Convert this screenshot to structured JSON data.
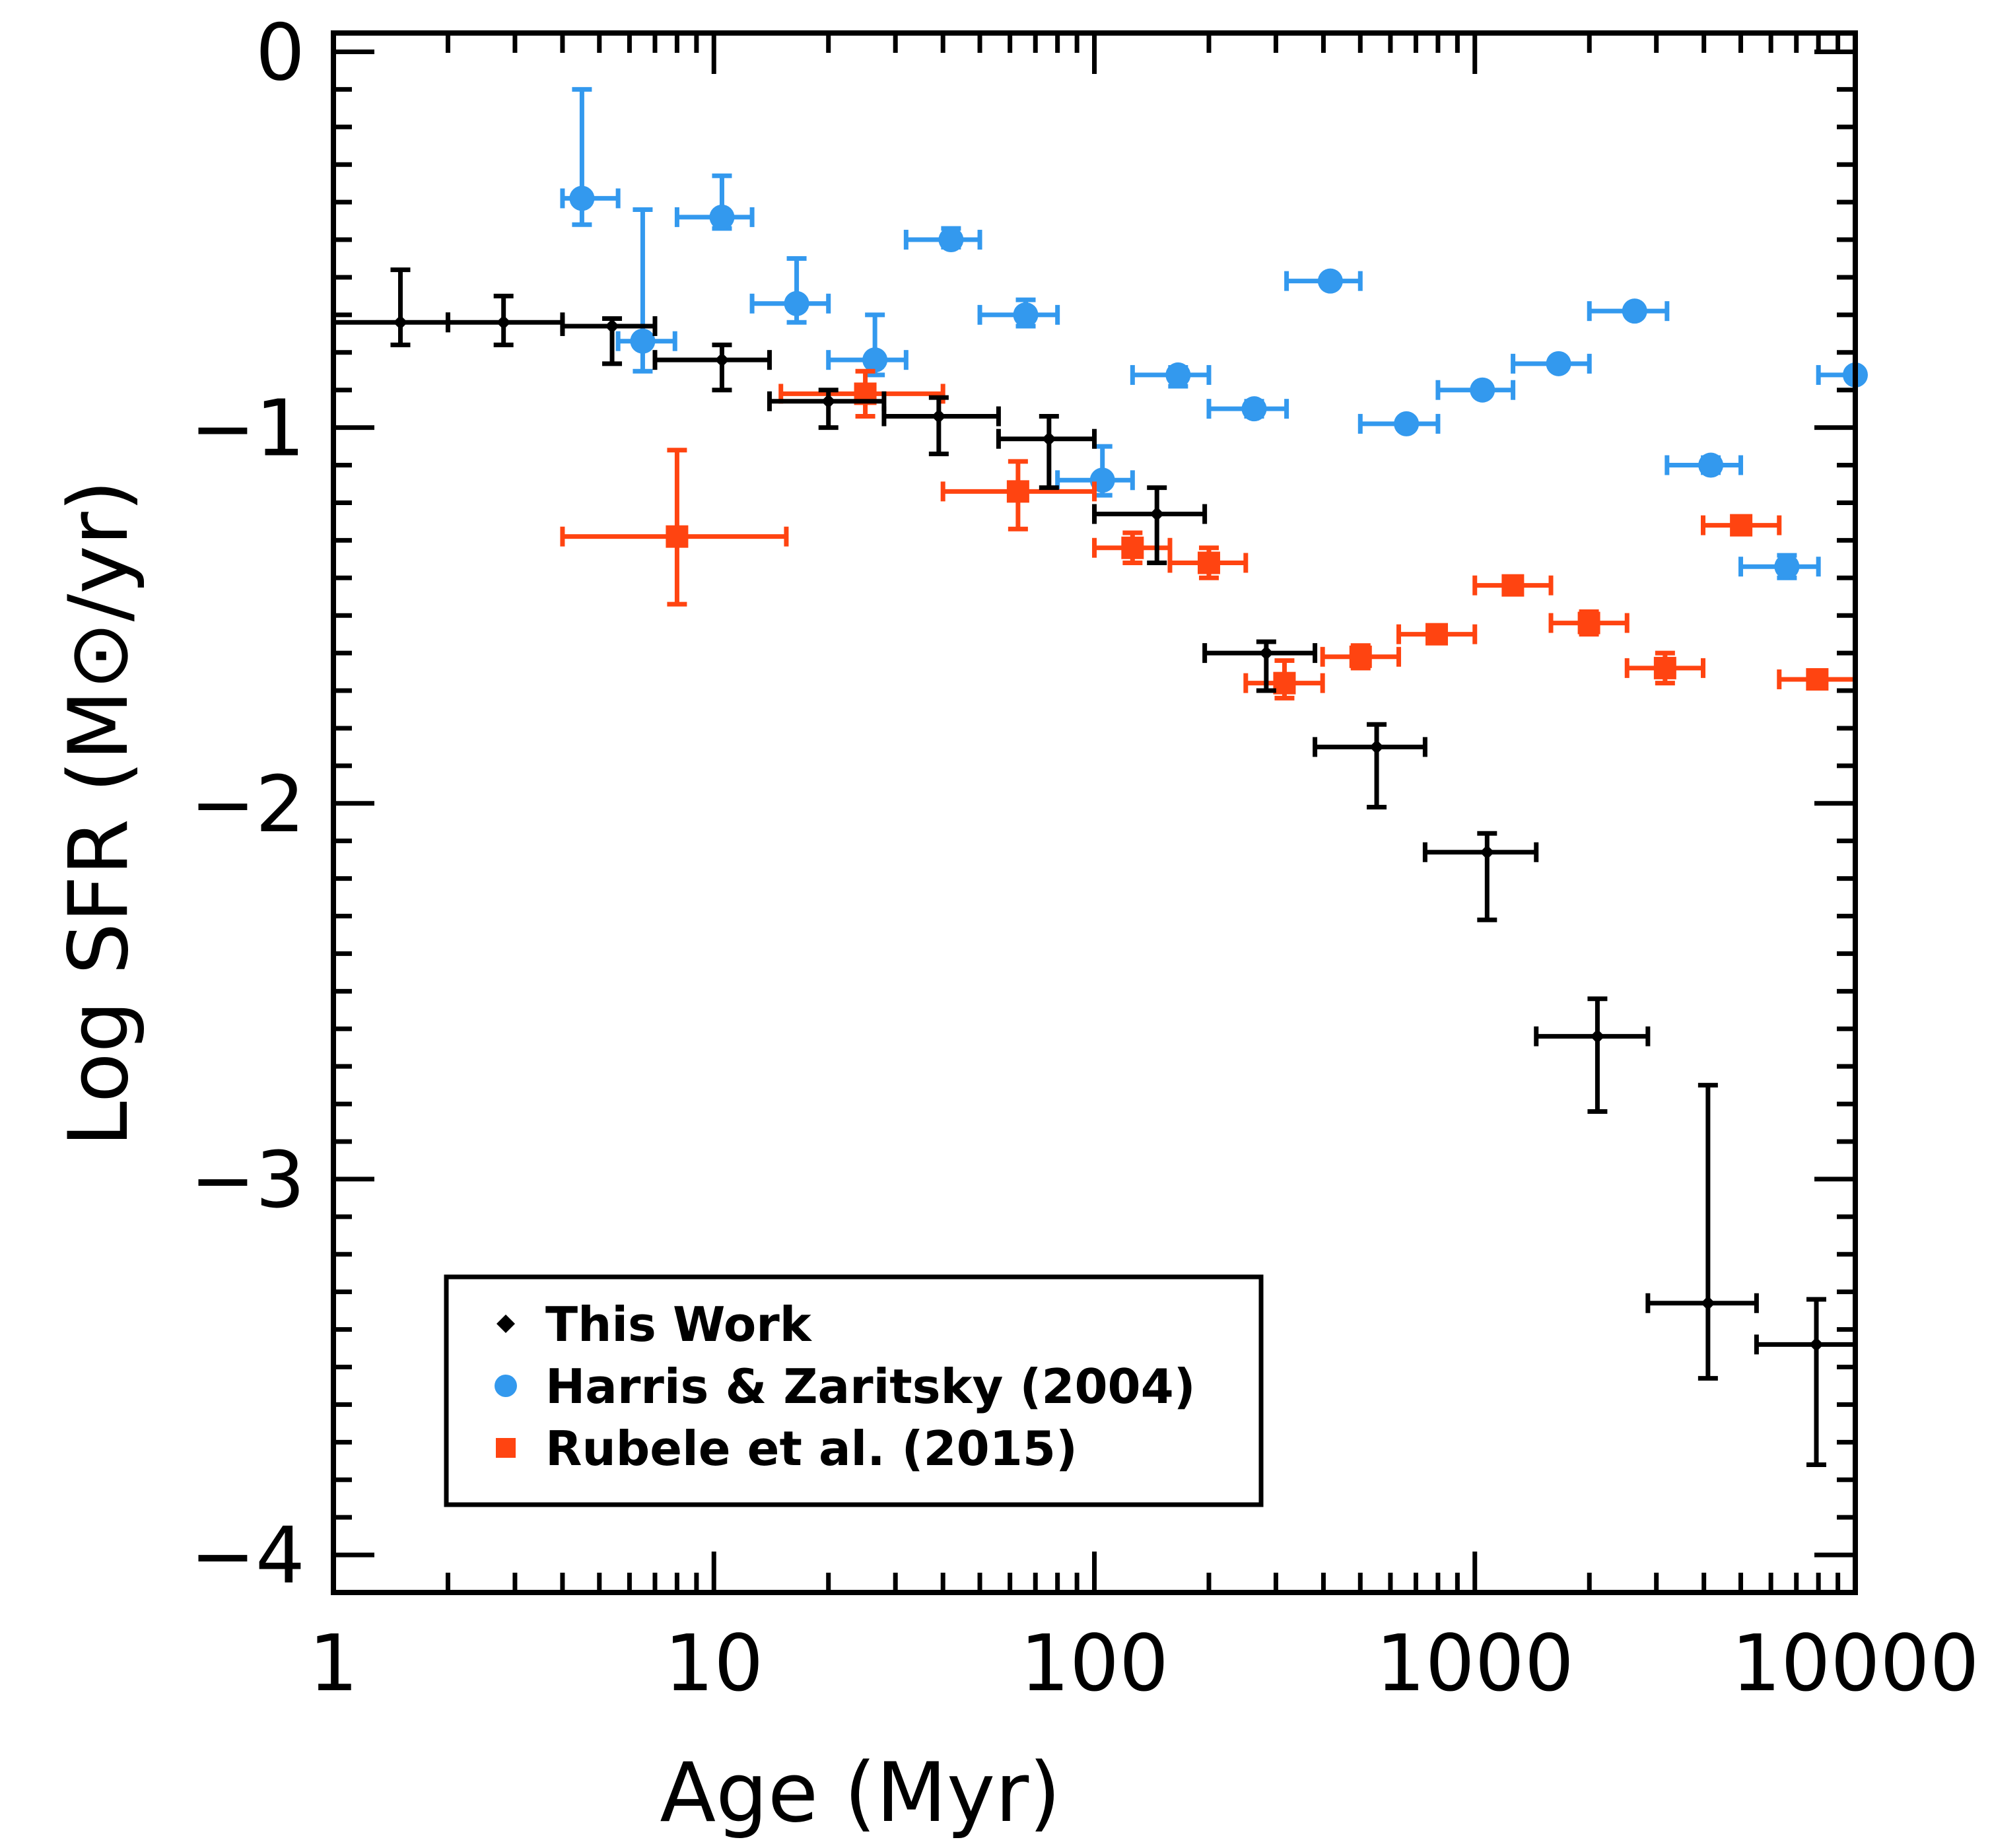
{
  "chart_data": {
    "type": "scatter",
    "title": "",
    "xlabel": "Age (Myr)",
    "ylabel": "Log SFR (M⊙/yr)",
    "xscale": "log",
    "xlim": [
      1,
      10000
    ],
    "ylim": [
      -4.1,
      0.05
    ],
    "x_ticks": [
      1,
      10,
      100,
      1000,
      10000
    ],
    "x_tick_labels": [
      "1",
      "10",
      "100",
      "1000",
      "10000"
    ],
    "y_ticks": [
      0,
      -1,
      -2,
      -3,
      -4
    ],
    "y_tick_labels": [
      "0",
      "−1",
      "−2",
      "−3",
      "−4"
    ],
    "legend_position": "bottom-left",
    "series": [
      {
        "name": "This Work",
        "color": "#000000",
        "marker": "diamond",
        "points": [
          {
            "x": 1.5,
            "xlo": 1.0,
            "xhi": 2.0,
            "y": -0.72,
            "ylo": -0.78,
            "yhi": -0.58
          },
          {
            "x": 2.8,
            "xlo": 2.0,
            "xhi": 4.0,
            "y": -0.72,
            "ylo": -0.78,
            "yhi": -0.65
          },
          {
            "x": 5.4,
            "xlo": 4.0,
            "xhi": 7.0,
            "y": -0.73,
            "ylo": -0.83,
            "yhi": -0.71
          },
          {
            "x": 10.5,
            "xlo": 7.0,
            "xhi": 14.0,
            "y": -0.82,
            "ylo": -0.9,
            "yhi": -0.78
          },
          {
            "x": 20.0,
            "xlo": 14.0,
            "xhi": 28.0,
            "y": -0.93,
            "ylo": -1.0,
            "yhi": -0.9
          },
          {
            "x": 39.0,
            "xlo": 28.0,
            "xhi": 56.0,
            "y": -0.97,
            "ylo": -1.07,
            "yhi": -0.92
          },
          {
            "x": 76.0,
            "xlo": 56.0,
            "xhi": 100.0,
            "y": -1.03,
            "ylo": -1.16,
            "yhi": -0.97
          },
          {
            "x": 146.0,
            "xlo": 100.0,
            "xhi": 195.0,
            "y": -1.23,
            "ylo": -1.36,
            "yhi": -1.16
          },
          {
            "x": 283.0,
            "xlo": 195.0,
            "xhi": 380.0,
            "y": -1.6,
            "ylo": -1.7,
            "yhi": -1.57
          },
          {
            "x": 552.0,
            "xlo": 380.0,
            "xhi": 740.0,
            "y": -1.85,
            "ylo": -2.01,
            "yhi": -1.79
          },
          {
            "x": 1077.0,
            "xlo": 740.0,
            "xhi": 1450.0,
            "y": -2.13,
            "ylo": -2.31,
            "yhi": -2.08
          },
          {
            "x": 2100.0,
            "xlo": 1450.0,
            "xhi": 2850.0,
            "y": -2.62,
            "ylo": -2.82,
            "yhi": -2.52
          },
          {
            "x": 4100.0,
            "xlo": 2850.0,
            "xhi": 5500.0,
            "y": -3.33,
            "ylo": -3.53,
            "yhi": -2.75
          },
          {
            "x": 7900.0,
            "xlo": 5500.0,
            "xhi": 10000.0,
            "y": -3.44,
            "ylo": -3.76,
            "yhi": -3.32
          }
        ]
      },
      {
        "name": "Harris & Zaritsky (2004)",
        "color": "#3399ee",
        "marker": "circle",
        "points": [
          {
            "x": 4.5,
            "xlo": 4.0,
            "xhi": 5.6,
            "y": -0.39,
            "ylo": -0.46,
            "yhi": -0.1
          },
          {
            "x": 6.5,
            "xlo": 5.6,
            "xhi": 7.9,
            "y": -0.77,
            "ylo": -0.85,
            "yhi": -0.42
          },
          {
            "x": 10.5,
            "xlo": 8.0,
            "xhi": 12.6,
            "y": -0.44,
            "ylo": -0.47,
            "yhi": -0.33
          },
          {
            "x": 16.5,
            "xlo": 12.6,
            "xhi": 20.0,
            "y": -0.67,
            "ylo": -0.72,
            "yhi": -0.55
          },
          {
            "x": 26.5,
            "xlo": 20.0,
            "xhi": 32.0,
            "y": -0.82,
            "ylo": -0.86,
            "yhi": -0.7
          },
          {
            "x": 42.0,
            "xlo": 32.0,
            "xhi": 50.0,
            "y": -0.5,
            "ylo": -0.52,
            "yhi": -0.47
          },
          {
            "x": 66.0,
            "xlo": 50.0,
            "xhi": 80.0,
            "y": -0.7,
            "ylo": -0.73,
            "yhi": -0.66
          },
          {
            "x": 105.0,
            "xlo": 80.0,
            "xhi": 126.0,
            "y": -1.14,
            "ylo": -1.18,
            "yhi": -1.05
          },
          {
            "x": 166.0,
            "xlo": 126.0,
            "xhi": 200.0,
            "y": -0.86,
            "ylo": -0.89,
            "yhi": -0.84
          },
          {
            "x": 263.0,
            "xlo": 200.0,
            "xhi": 320.0,
            "y": -0.95,
            "ylo": -0.97,
            "yhi": -0.93
          },
          {
            "x": 417.0,
            "xlo": 320.0,
            "xhi": 500.0,
            "y": -0.61,
            "ylo": -0.62,
            "yhi": -0.6
          },
          {
            "x": 661.0,
            "xlo": 500.0,
            "xhi": 800.0,
            "y": -0.99,
            "ylo": -1.0,
            "yhi": -0.98
          },
          {
            "x": 1047.0,
            "xlo": 800.0,
            "xhi": 1260.0,
            "y": -0.9,
            "ylo": -0.91,
            "yhi": -0.89
          },
          {
            "x": 1660.0,
            "xlo": 1260.0,
            "xhi": 2000.0,
            "y": -0.83,
            "ylo": -0.84,
            "yhi": -0.82
          },
          {
            "x": 2630.0,
            "xlo": 2000.0,
            "xhi": 3200.0,
            "y": -0.69,
            "ylo": -0.7,
            "yhi": -0.68
          },
          {
            "x": 4170.0,
            "xlo": 3200.0,
            "xhi": 5000.0,
            "y": -1.1,
            "ylo": -1.12,
            "yhi": -1.08
          },
          {
            "x": 6610.0,
            "xlo": 5000.0,
            "xhi": 8000.0,
            "y": -1.37,
            "ylo": -1.4,
            "yhi": -1.34
          },
          {
            "x": 10000.0,
            "xlo": 8000.0,
            "xhi": 10000.0,
            "y": -0.86,
            "ylo": -0.87,
            "yhi": -0.85
          }
        ]
      },
      {
        "name": "Rubele et al. (2015)",
        "color": "#ff4411",
        "marker": "square",
        "points": [
          {
            "x": 8.0,
            "xlo": 4.0,
            "xhi": 15.5,
            "y": -1.29,
            "ylo": -1.47,
            "yhi": -1.06
          },
          {
            "x": 25.0,
            "xlo": 15.0,
            "xhi": 40.0,
            "y": -0.91,
            "ylo": -0.97,
            "yhi": -0.85
          },
          {
            "x": 63.0,
            "xlo": 40.0,
            "xhi": 100.0,
            "y": -1.17,
            "ylo": -1.27,
            "yhi": -1.09
          },
          {
            "x": 126.0,
            "xlo": 100.0,
            "xhi": 158.0,
            "y": -1.32,
            "ylo": -1.36,
            "yhi": -1.28
          },
          {
            "x": 200.0,
            "xlo": 158.0,
            "xhi": 250.0,
            "y": -1.36,
            "ylo": -1.4,
            "yhi": -1.32
          },
          {
            "x": 316.0,
            "xlo": 250.0,
            "xhi": 398.0,
            "y": -1.68,
            "ylo": -1.72,
            "yhi": -1.62
          },
          {
            "x": 501.0,
            "xlo": 398.0,
            "xhi": 631.0,
            "y": -1.61,
            "ylo": -1.64,
            "yhi": -1.58
          },
          {
            "x": 794.0,
            "xlo": 631.0,
            "xhi": 1000.0,
            "y": -1.55,
            "ylo": -1.57,
            "yhi": -1.53
          },
          {
            "x": 1259.0,
            "xlo": 1000.0,
            "xhi": 1585.0,
            "y": -1.42,
            "ylo": -1.43,
            "yhi": -1.41
          },
          {
            "x": 1995.0,
            "xlo": 1585.0,
            "xhi": 2512.0,
            "y": -1.52,
            "ylo": -1.55,
            "yhi": -1.49
          },
          {
            "x": 3162.0,
            "xlo": 2512.0,
            "xhi": 3981.0,
            "y": -1.64,
            "ylo": -1.68,
            "yhi": -1.6
          },
          {
            "x": 5012.0,
            "xlo": 3981.0,
            "xhi": 6310.0,
            "y": -1.26,
            "ylo": -1.27,
            "yhi": -1.25
          },
          {
            "x": 7943.0,
            "xlo": 6310.0,
            "xhi": 10000.0,
            "y": -1.67,
            "ylo": -1.69,
            "yhi": -1.65
          }
        ]
      }
    ]
  }
}
